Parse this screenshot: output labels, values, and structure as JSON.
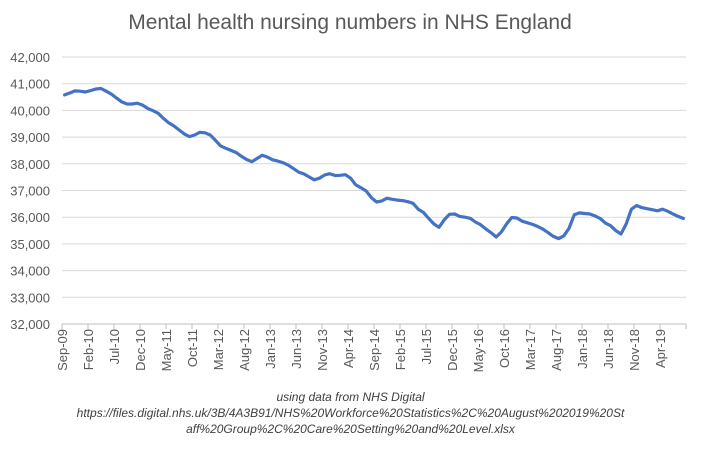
{
  "chart_data": {
    "type": "line",
    "title": "Mental health nursing numbers in NHS England",
    "xlabel": "",
    "ylabel": "",
    "ylim": [
      32000,
      42000
    ],
    "yticks": [
      "32,000",
      "33,000",
      "34,000",
      "35,000",
      "36,000",
      "37,000",
      "38,000",
      "39,000",
      "40,000",
      "41,000",
      "42,000"
    ],
    "grid": true,
    "legend": "none",
    "line_color": "#4472C4",
    "xtick_labels": [
      "Sep-09",
      "Feb-10",
      "Jul-10",
      "Dec-10",
      "May-11",
      "Oct-11",
      "Mar-12",
      "Aug-12",
      "Jan-13",
      "Jun-13",
      "Nov-13",
      "Apr-14",
      "Sep-14",
      "Feb-15",
      "Jul-15",
      "Dec-15",
      "May-16",
      "Oct-16",
      "Mar-17",
      "Aug-17",
      "Jan-18",
      "Jun-18",
      "Nov-18",
      "Apr-19"
    ],
    "categories": [
      "Sep-09",
      "Oct-09",
      "Nov-09",
      "Dec-09",
      "Jan-10",
      "Feb-10",
      "Mar-10",
      "Apr-10",
      "May-10",
      "Jun-10",
      "Jul-10",
      "Aug-10",
      "Sep-10",
      "Oct-10",
      "Nov-10",
      "Dec-10",
      "Jan-11",
      "Feb-11",
      "Mar-11",
      "Apr-11",
      "May-11",
      "Jun-11",
      "Jul-11",
      "Aug-11",
      "Sep-11",
      "Oct-11",
      "Nov-11",
      "Dec-11",
      "Jan-12",
      "Feb-12",
      "Mar-12",
      "Apr-12",
      "May-12",
      "Jun-12",
      "Jul-12",
      "Aug-12",
      "Sep-12",
      "Oct-12",
      "Nov-12",
      "Dec-12",
      "Jan-13",
      "Feb-13",
      "Mar-13",
      "Apr-13",
      "May-13",
      "Jun-13",
      "Jul-13",
      "Aug-13",
      "Sep-13",
      "Oct-13",
      "Nov-13",
      "Dec-13",
      "Jan-14",
      "Feb-14",
      "Mar-14",
      "Apr-14",
      "May-14",
      "Jun-14",
      "Jul-14",
      "Aug-14",
      "Sep-14",
      "Oct-14",
      "Nov-14",
      "Dec-14",
      "Jan-15",
      "Feb-15",
      "Mar-15",
      "Apr-15",
      "May-15",
      "Jun-15",
      "Jul-15",
      "Aug-15",
      "Sep-15",
      "Oct-15",
      "Nov-15",
      "Dec-15",
      "Jan-16",
      "Feb-16",
      "Mar-16",
      "Apr-16",
      "May-16",
      "Jun-16",
      "Jul-16",
      "Aug-16",
      "Sep-16",
      "Oct-16",
      "Nov-16",
      "Dec-16",
      "Jan-17",
      "Feb-17",
      "Mar-17",
      "Apr-17",
      "May-17",
      "Jun-17",
      "Jul-17",
      "Aug-17",
      "Sep-17",
      "Oct-17",
      "Nov-17",
      "Dec-17",
      "Jan-18",
      "Feb-18",
      "Mar-18",
      "Apr-18",
      "May-18",
      "Jun-18",
      "Jul-18",
      "Aug-18",
      "Sep-18",
      "Oct-18",
      "Nov-18",
      "Dec-18",
      "Jan-19",
      "Feb-19",
      "Mar-19",
      "Apr-19",
      "May-19",
      "Jun-19",
      "Jul-19",
      "Aug-19"
    ],
    "series": [
      {
        "values": [
          40580,
          40650,
          40730,
          40720,
          40690,
          40740,
          40800,
          40820,
          40720,
          40610,
          40460,
          40320,
          40240,
          40240,
          40270,
          40200,
          40070,
          39990,
          39890,
          39700,
          39540,
          39420,
          39270,
          39120,
          39020,
          39080,
          39180,
          39160,
          39080,
          38880,
          38670,
          38580,
          38500,
          38420,
          38280,
          38160,
          38080,
          38200,
          38320,
          38250,
          38150,
          38100,
          38040,
          37950,
          37820,
          37690,
          37620,
          37510,
          37400,
          37460,
          37580,
          37630,
          37560,
          37570,
          37590,
          37460,
          37210,
          37100,
          36980,
          36730,
          36570,
          36610,
          36710,
          36670,
          36640,
          36620,
          36580,
          36520,
          36300,
          36180,
          35960,
          35750,
          35620,
          35900,
          36110,
          36120,
          36030,
          36000,
          35960,
          35820,
          35720,
          35560,
          35420,
          35260,
          35450,
          35750,
          35990,
          35970,
          35850,
          35790,
          35730,
          35650,
          35550,
          35420,
          35280,
          35200,
          35300,
          35580,
          36090,
          36160,
          36140,
          36120,
          36050,
          35950,
          35780,
          35680,
          35500,
          35370,
          35750,
          36300,
          36440,
          36360,
          36320,
          36280,
          36240,
          36300,
          36220,
          36120,
          36030,
          35950
        ]
      }
    ]
  },
  "source_note": {
    "line1": "using data from NHS Digital",
    "line2": "https://files.digital.nhs.uk/3B/4A3B91/NHS%20Workforce%20Statistics%2C%20August%202019%20St",
    "line3": "aff%20Group%2C%20Care%20Setting%20and%20Level.xlsx"
  }
}
